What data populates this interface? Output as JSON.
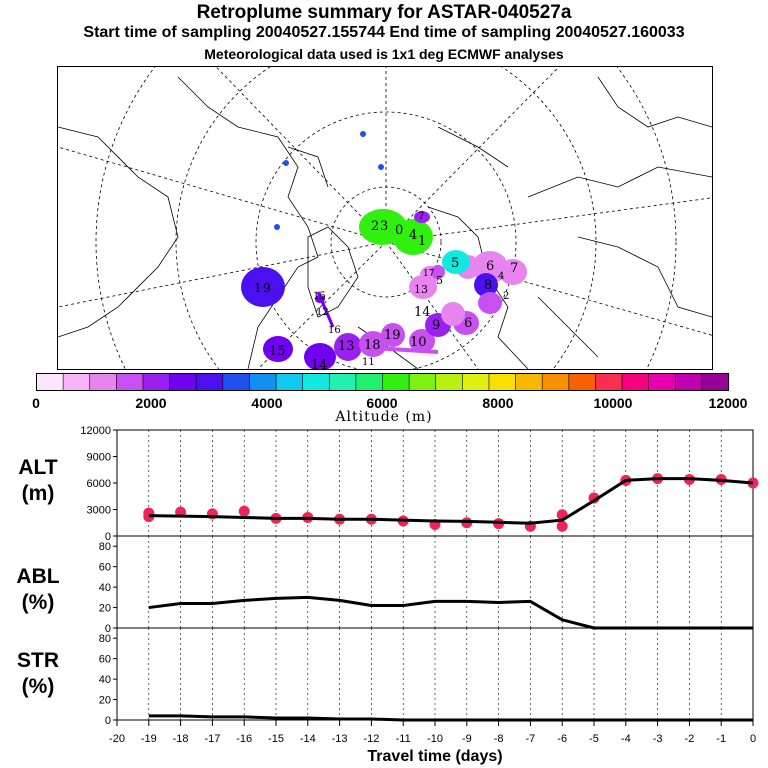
{
  "header": {
    "title": "Retroplume summary for ASTAR-040527a",
    "sampling": "Start time of sampling 20040527.155744     End time of sampling 20040527.160033",
    "met": "Meteorological data used is 1x1 deg ECMWF analyses"
  },
  "colorbar": {
    "title": "Altitude (m)",
    "tick_labels": [
      "0",
      "2000",
      "4000",
      "6000",
      "8000",
      "10000",
      "12000"
    ],
    "colors": [
      "#ffe4ff",
      "#f8b4f8",
      "#e884f0",
      "#c850f0",
      "#9a20f0",
      "#7000f0",
      "#4a10f0",
      "#2050f0",
      "#1090f0",
      "#10c8f0",
      "#10e8e0",
      "#20f0b0",
      "#20f070",
      "#30f010",
      "#80f010",
      "#b8f010",
      "#e0f010",
      "#f8e000",
      "#f8b800",
      "#f89000",
      "#f86000",
      "#f83050",
      "#f80080",
      "#e800b0",
      "#c000b0",
      "#980098"
    ]
  },
  "map": {
    "labels": [
      "2",
      "3",
      "0",
      "4",
      "1",
      "7",
      "5",
      "6",
      "7",
      "8",
      "13",
      "5",
      "14",
      "6",
      "1",
      "9",
      "12",
      "15",
      "16",
      "15",
      "13",
      "14",
      "17",
      "18",
      "19",
      "10",
      "9",
      "11",
      "2",
      "4"
    ]
  },
  "panels": {
    "alt_label": "ALT\n(m)",
    "abl_label": "ABL\n(%)",
    "str_label": "STR\n(%)"
  },
  "xaxis": {
    "label": "Travel time (days)",
    "ticks": [
      "-20",
      "-19",
      "-18",
      "-17",
      "-16",
      "-15",
      "-14",
      "-13",
      "-12",
      "-11",
      "-10",
      "-9",
      "-8",
      "-7",
      "-6",
      "-5",
      "-4",
      "-3",
      "-2",
      "-1",
      "0"
    ]
  },
  "chart_data": [
    {
      "type": "line",
      "panel": "ALT",
      "title": "",
      "xlabel": "Travel time (days)",
      "ylabel": "ALT (m)",
      "xlim": [
        -20,
        0
      ],
      "ylim": [
        0,
        12000
      ],
      "yticks": [
        "0",
        "3000",
        "6000",
        "9000",
        "12000"
      ],
      "x": [
        -19,
        -18,
        -17,
        -16,
        -15,
        -14,
        -13,
        -12,
        -11,
        -10,
        -9,
        -8,
        -7,
        -6,
        -5,
        -4,
        -3,
        -2,
        -1,
        0
      ],
      "values": [
        2300,
        2250,
        2200,
        2100,
        2000,
        2000,
        1900,
        1900,
        1800,
        1700,
        1650,
        1550,
        1450,
        1800,
        4000,
        6300,
        6500,
        6500,
        6300,
        6000
      ],
      "scatter": {
        "x": [
          -19,
          -19,
          -18,
          -17,
          -16,
          -15,
          -14,
          -13,
          -12,
          -11,
          -10,
          -9,
          -8,
          -7,
          -6,
          -6,
          -5,
          -4,
          -3,
          -2,
          -1,
          0
        ],
        "values": [
          2600,
          2200,
          2700,
          2500,
          2800,
          2000,
          2100,
          1900,
          1900,
          1700,
          1300,
          1500,
          1400,
          1100,
          1100,
          2400,
          4300,
          6300,
          6500,
          6400,
          6400,
          6000
        ]
      }
    },
    {
      "type": "line",
      "panel": "ABL",
      "ylabel": "ABL (%)",
      "xlim": [
        -20,
        0
      ],
      "ylim": [
        0,
        90
      ],
      "yticks": [
        "0",
        "20",
        "40",
        "60",
        "80"
      ],
      "x": [
        -19,
        -18,
        -17,
        -16,
        -15,
        -14,
        -13,
        -12,
        -11,
        -10,
        -9,
        -8,
        -7,
        -6,
        -5,
        -4,
        -3,
        -2,
        -1,
        0
      ],
      "values": [
        20,
        24,
        24,
        27,
        29,
        30,
        27,
        22,
        22,
        26,
        26,
        25,
        26,
        8,
        0,
        0,
        0,
        0,
        0,
        0
      ]
    },
    {
      "type": "line",
      "panel": "STR",
      "ylabel": "STR (%)",
      "xlim": [
        -20,
        0
      ],
      "ylim": [
        0,
        90
      ],
      "yticks": [
        "0",
        "20",
        "40",
        "60",
        "80"
      ],
      "x": [
        -19,
        -18,
        -17,
        -16,
        -15,
        -14,
        -13,
        -12,
        -11,
        -10,
        -9,
        -8,
        -7,
        -6,
        -5,
        -4,
        -3,
        -2,
        -1,
        0
      ],
      "values": [
        4,
        4,
        3,
        3,
        2,
        2,
        1,
        1,
        0,
        0,
        0,
        0,
        0,
        0,
        0,
        0,
        0,
        0,
        0,
        0
      ]
    }
  ]
}
